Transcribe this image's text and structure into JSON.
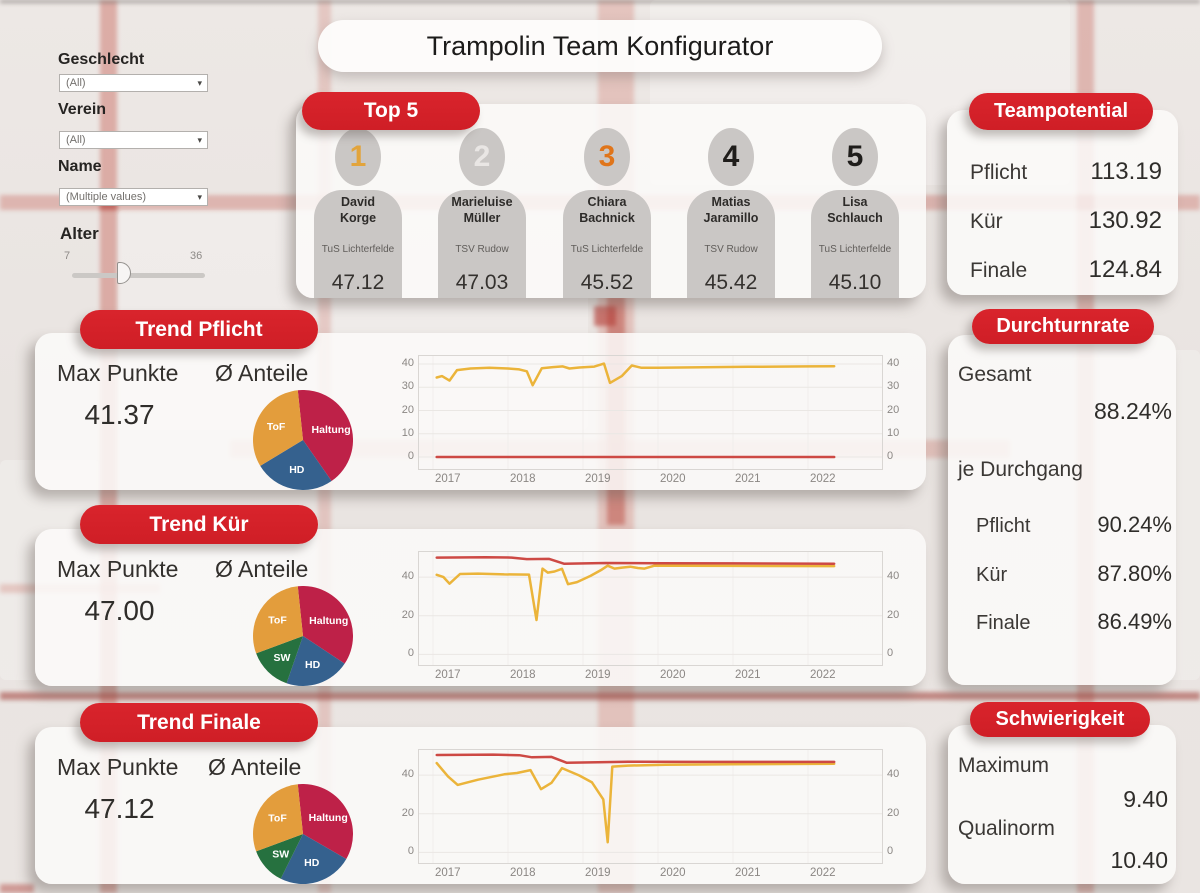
{
  "title": "Trampolin Team Konfigurator",
  "filters": {
    "geschlecht_label": "Geschlecht",
    "geschlecht_value": "(All)",
    "verein_label": "Verein",
    "verein_value": "(All)",
    "name_label": "Name",
    "name_value": "(Multiple values)",
    "alter_label": "Alter",
    "alter_min": "7",
    "alter_max": "36",
    "dropdown_caret": "▾"
  },
  "top5": {
    "header": "Top 5",
    "athletes": [
      {
        "rank": "1",
        "rank_color": "#E2A43C",
        "first": "David",
        "last": "Korge",
        "club": "TuS Lichterfelde",
        "score": "47.12"
      },
      {
        "rank": "2",
        "rank_color": "#E9E6E4",
        "first": "Marieluise",
        "last": "Müller",
        "club": "TSV Rudow",
        "score": "47.03"
      },
      {
        "rank": "3",
        "rank_color": "#E0751A",
        "first": "Chiara",
        "last": "Bachnick",
        "club": "TuS Lichterfelde",
        "score": "45.52"
      },
      {
        "rank": "4",
        "rank_color": "#1F1D1B",
        "first": "Matias",
        "last": "Jaramillo",
        "club": "TSV Rudow",
        "score": "45.42"
      },
      {
        "rank": "5",
        "rank_color": "#1F1D1B",
        "first": "Lisa",
        "last": "Schlauch",
        "club": "TuS Lichterfelde",
        "score": "45.10"
      }
    ]
  },
  "teampotential": {
    "header": "Teampotential",
    "rows": [
      {
        "label": "Pflicht",
        "value": "113.19"
      },
      {
        "label": "Kür",
        "value": "130.92"
      },
      {
        "label": "Finale",
        "value": "124.84"
      }
    ]
  },
  "durchturnrate": {
    "header": "Durchturnrate",
    "gesamt_label": "Gesamt",
    "gesamt_value": "88.24%",
    "sub_label": "je Durchgang",
    "rows": [
      {
        "label": "Pflicht",
        "value": "90.24%"
      },
      {
        "label": "Kür",
        "value": "87.80%"
      },
      {
        "label": "Finale",
        "value": "86.49%"
      }
    ]
  },
  "schwierigkeit": {
    "header": "Schwierigkeit",
    "maximum_label": "Maximum",
    "maximum_value": "9.40",
    "qualinorm_label": "Qualinorm",
    "qualinorm_value": "10.40"
  },
  "trend_pflicht": {
    "header": "Trend Pflicht",
    "max_label": "Max Punkte",
    "max_value": "41.37",
    "anteile_label": "Ø Anteile"
  },
  "trend_kuer": {
    "header": "Trend Kür",
    "max_label": "Max Punkte",
    "max_value": "47.00",
    "anteile_label": "Ø Anteile"
  },
  "trend_finale": {
    "header": "Trend Finale",
    "max_label": "Max Punkte",
    "max_value": "47.12",
    "anteile_label": "Ø Anteile"
  },
  "colors": {
    "accent_red": "#D52129",
    "line_yellow": "#EBB43A",
    "line_red": "#CD4944",
    "pie_tof": "#E39D3C",
    "pie_haltung": "#BE2148",
    "pie_hd": "#35618E",
    "pie_sw": "#26713F"
  },
  "chart_data": [
    {
      "id": "pie_pflicht",
      "type": "pie",
      "title": "Ø Anteile Pflicht",
      "start_deg": -6,
      "label_color": "#FFFFFF",
      "slices": [
        {
          "label": "Haltung",
          "value": 42,
          "color": "#BE2148"
        },
        {
          "label": "HD",
          "value": 26,
          "color": "#35618E"
        },
        {
          "label": "ToF",
          "value": 32,
          "color": "#E39D3C"
        }
      ]
    },
    {
      "id": "pie_kuer",
      "type": "pie",
      "title": "Ø Anteile Kür",
      "start_deg": -6,
      "label_color": "#FFFFFF",
      "slices": [
        {
          "label": "Haltung",
          "value": 36,
          "color": "#BE2148"
        },
        {
          "label": "HD",
          "value": 21,
          "color": "#35618E"
        },
        {
          "label": "SW",
          "value": 14,
          "color": "#26713F"
        },
        {
          "label": "ToF",
          "value": 29,
          "color": "#E39D3C"
        }
      ]
    },
    {
      "id": "pie_finale",
      "type": "pie",
      "title": "Ø Anteile Finale",
      "start_deg": -6,
      "label_color": "#FFFFFF",
      "slices": [
        {
          "label": "Haltung",
          "value": 35,
          "color": "#BE2148"
        },
        {
          "label": "HD",
          "value": 24,
          "color": "#35618E"
        },
        {
          "label": "SW",
          "value": 12,
          "color": "#26713F"
        },
        {
          "label": "ToF",
          "value": 29,
          "color": "#E39D3C"
        }
      ]
    },
    {
      "id": "line_pflicht",
      "type": "line",
      "title": "Trend Pflicht 2017-2022",
      "grid": true,
      "legend": "none",
      "x_ticks": [
        2017,
        2018,
        2019,
        2020,
        2021,
        2022
      ],
      "xlim": [
        2016.8,
        2023.0
      ],
      "y_ticks": [
        0,
        10,
        20,
        30,
        40
      ],
      "ylim": [
        -5.6,
        43.9
      ],
      "series": [
        {
          "name": "yellow",
          "color": "#EBB43A",
          "points": [
            [
              2017.05,
              34.2
            ],
            [
              2017.12,
              34.8
            ],
            [
              2017.22,
              32.9
            ],
            [
              2017.32,
              37.4
            ],
            [
              2017.5,
              38.1
            ],
            [
              2017.75,
              38.4
            ],
            [
              2018.0,
              38.1
            ],
            [
              2018.15,
              37.7
            ],
            [
              2018.25,
              36.9
            ],
            [
              2018.33,
              30.9
            ],
            [
              2018.45,
              38.2
            ],
            [
              2018.6,
              38.7
            ],
            [
              2018.73,
              39.0
            ],
            [
              2018.82,
              38.1
            ],
            [
              2018.95,
              38.5
            ],
            [
              2019.15,
              38.9
            ],
            [
              2019.28,
              40.2
            ],
            [
              2019.36,
              31.9
            ],
            [
              2019.52,
              34.9
            ],
            [
              2019.65,
              39.4
            ],
            [
              2019.78,
              38.4
            ],
            [
              2020.0,
              38.4
            ],
            [
              2020.6,
              38.6
            ],
            [
              2021.2,
              38.8
            ],
            [
              2022.0,
              39.0
            ],
            [
              2022.35,
              39.1
            ]
          ]
        },
        {
          "name": "red",
          "color": "#CD4944",
          "points": [
            [
              2017.05,
              0
            ],
            [
              2022.35,
              0
            ]
          ]
        }
      ]
    },
    {
      "id": "line_kuer",
      "type": "line",
      "title": "Trend Kür 2017-2022",
      "grid": true,
      "legend": "none",
      "x_ticks": [
        2017,
        2018,
        2019,
        2020,
        2021,
        2022
      ],
      "xlim": [
        2016.8,
        2023.0
      ],
      "y_ticks": [
        0,
        20,
        40
      ],
      "ylim": [
        -6,
        53.5
      ],
      "series": [
        {
          "name": "yellow",
          "color": "#EBB43A",
          "points": [
            [
              2017.05,
              41.2
            ],
            [
              2017.14,
              40.0
            ],
            [
              2017.22,
              36.6
            ],
            [
              2017.36,
              41.6
            ],
            [
              2017.6,
              41.8
            ],
            [
              2017.95,
              41.4
            ],
            [
              2018.28,
              41.3
            ],
            [
              2018.38,
              17.8
            ],
            [
              2018.46,
              44.4
            ],
            [
              2018.53,
              42.3
            ],
            [
              2018.62,
              42.9
            ],
            [
              2018.72,
              44.3
            ],
            [
              2018.8,
              36.3
            ],
            [
              2018.92,
              37.4
            ],
            [
              2019.1,
              40.6
            ],
            [
              2019.25,
              43.9
            ],
            [
              2019.33,
              45.9
            ],
            [
              2019.42,
              44.4
            ],
            [
              2019.52,
              44.9
            ],
            [
              2019.63,
              45.4
            ],
            [
              2019.73,
              44.7
            ],
            [
              2019.82,
              44.4
            ],
            [
              2019.95,
              45.9
            ],
            [
              2020.3,
              45.9
            ],
            [
              2021.0,
              45.8
            ],
            [
              2022.35,
              45.7
            ]
          ]
        },
        {
          "name": "red",
          "color": "#CD4944",
          "points": [
            [
              2017.05,
              50.1
            ],
            [
              2017.7,
              50.3
            ],
            [
              2018.05,
              50.1
            ],
            [
              2018.25,
              49.3
            ],
            [
              2018.55,
              49.4
            ],
            [
              2018.75,
              46.9
            ],
            [
              2019.3,
              47.3
            ],
            [
              2020.0,
              47.2
            ],
            [
              2021.0,
              47.1
            ],
            [
              2022.35,
              46.9
            ]
          ]
        }
      ]
    },
    {
      "id": "line_finale",
      "type": "line",
      "title": "Trend Finale 2017-2022",
      "grid": true,
      "legend": "none",
      "x_ticks": [
        2017,
        2018,
        2019,
        2020,
        2021,
        2022
      ],
      "xlim": [
        2016.8,
        2023.0
      ],
      "y_ticks": [
        0,
        20,
        40
      ],
      "ylim": [
        -6,
        53.5
      ],
      "series": [
        {
          "name": "yellow",
          "color": "#EBB43A",
          "points": [
            [
              2017.05,
              46.2
            ],
            [
              2017.2,
              39.3
            ],
            [
              2017.33,
              34.9
            ],
            [
              2017.6,
              37.6
            ],
            [
              2017.95,
              40.4
            ],
            [
              2018.12,
              41.1
            ],
            [
              2018.3,
              42.6
            ],
            [
              2018.44,
              32.7
            ],
            [
              2018.58,
              36.0
            ],
            [
              2018.72,
              43.6
            ],
            [
              2018.95,
              39.8
            ],
            [
              2019.12,
              36.2
            ],
            [
              2019.27,
              27.4
            ],
            [
              2019.33,
              5.3
            ],
            [
              2019.39,
              44.4
            ],
            [
              2019.6,
              44.9
            ],
            [
              2020.1,
              45.3
            ],
            [
              2021.0,
              45.6
            ],
            [
              2022.35,
              45.9
            ]
          ]
        },
        {
          "name": "red",
          "color": "#CD4944",
          "points": [
            [
              2017.05,
              50.4
            ],
            [
              2017.8,
              50.6
            ],
            [
              2018.15,
              50.3
            ],
            [
              2018.32,
              49.2
            ],
            [
              2018.58,
              49.4
            ],
            [
              2018.78,
              46.4
            ],
            [
              2019.2,
              46.6
            ],
            [
              2019.6,
              46.9
            ],
            [
              2020.5,
              46.8
            ],
            [
              2021.5,
              46.8
            ],
            [
              2022.35,
              46.8
            ]
          ]
        }
      ]
    }
  ]
}
